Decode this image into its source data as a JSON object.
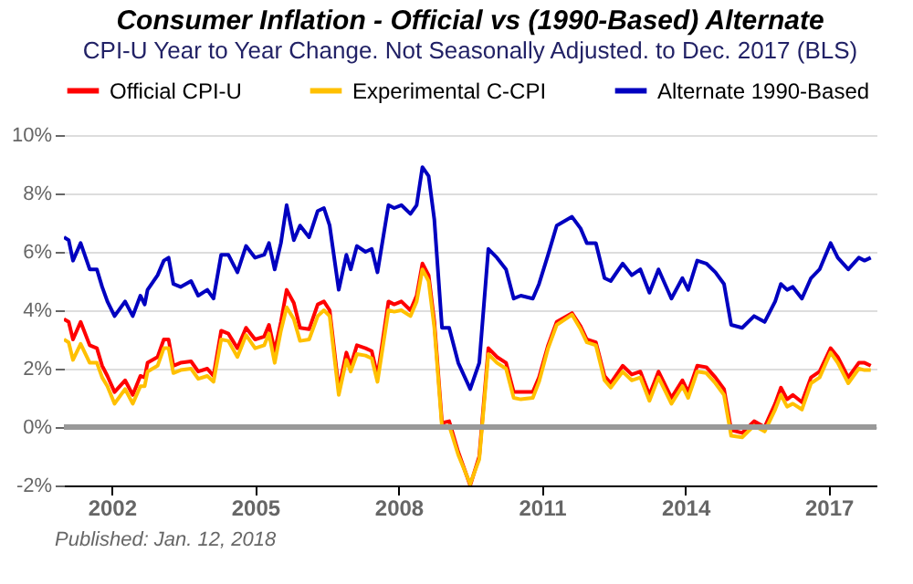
{
  "chart_data": {
    "type": "line",
    "title": "Consumer Inflation - Official vs (1990-Based) Alternate",
    "subtitle": "CPI-U Year to Year Change. Not Seasonally Adjusted. to Dec. 2017  (BLS)",
    "annotations": [
      "Published: Jan. 12, 2018"
    ],
    "xlim": [
      2001,
      2018
    ],
    "xticks": [
      2002,
      2005,
      2008,
      2011,
      2014,
      2017
    ],
    "ylim": [
      -2,
      10
    ],
    "yticks": [
      {
        "value": -2,
        "label": "-2%"
      },
      {
        "value": 0,
        "label": "0%"
      },
      {
        "value": 2,
        "label": "2%"
      },
      {
        "value": 4,
        "label": "4%"
      },
      {
        "value": 6,
        "label": "6%"
      },
      {
        "value": 8,
        "label": "8%"
      },
      {
        "value": 10,
        "label": "10%"
      }
    ],
    "grid": "y",
    "legend": "top",
    "marker": "none",
    "line_style": "solid",
    "ref_lines": [
      {
        "axis": "y",
        "value": 0,
        "color": "#999999"
      }
    ],
    "x": [
      2001.0,
      2001.1,
      2001.19,
      2001.35,
      2001.54,
      2001.69,
      2001.8,
      2001.91,
      2002.06,
      2002.28,
      2002.44,
      2002.6,
      2002.69,
      2002.75,
      2002.96,
      2003.09,
      2003.19,
      2003.29,
      2003.44,
      2003.66,
      2003.81,
      2004.0,
      2004.13,
      2004.29,
      2004.44,
      2004.63,
      2004.81,
      2005.0,
      2005.19,
      2005.29,
      2005.41,
      2005.54,
      2005.66,
      2005.81,
      2005.94,
      2006.13,
      2006.31,
      2006.44,
      2006.56,
      2006.75,
      2006.91,
      2007.0,
      2007.13,
      2007.31,
      2007.44,
      2007.56,
      2007.79,
      2007.91,
      2008.06,
      2008.25,
      2008.38,
      2008.5,
      2008.63,
      2008.75,
      2008.91,
      2009.06,
      2009.25,
      2009.5,
      2009.69,
      2009.88,
      2010.06,
      2010.25,
      2010.41,
      2010.56,
      2010.81,
      2010.94,
      2011.13,
      2011.31,
      2011.63,
      2011.81,
      2011.94,
      2012.13,
      2012.31,
      2012.44,
      2012.69,
      2012.88,
      2013.06,
      2013.25,
      2013.44,
      2013.71,
      2013.94,
      2014.06,
      2014.25,
      2014.44,
      2014.63,
      2014.81,
      2014.96,
      2015.19,
      2015.44,
      2015.66,
      2015.88,
      2016.0,
      2016.13,
      2016.25,
      2016.44,
      2016.63,
      2016.81,
      2017.04,
      2017.19,
      2017.41,
      2017.63,
      2017.75,
      2017.88
    ],
    "series": [
      {
        "name": "Official CPI-U",
        "color": "#ff0000",
        "values": [
          3.7,
          3.6,
          3.0,
          3.6,
          2.8,
          2.7,
          2.1,
          1.75,
          1.2,
          1.6,
          1.1,
          1.75,
          1.7,
          2.2,
          2.4,
          3.0,
          3.0,
          2.1,
          2.2,
          2.25,
          1.9,
          2.0,
          1.75,
          3.3,
          3.2,
          2.7,
          3.4,
          3.0,
          3.1,
          3.5,
          2.6,
          3.6,
          4.7,
          4.25,
          3.4,
          3.35,
          4.2,
          4.3,
          4.0,
          1.3,
          2.55,
          2.1,
          2.8,
          2.7,
          2.6,
          1.75,
          4.3,
          4.2,
          4.3,
          4.0,
          4.5,
          5.6,
          5.2,
          3.6,
          0.14,
          0.2,
          -0.85,
          -2.0,
          -1.0,
          2.7,
          2.4,
          2.2,
          1.2,
          1.2,
          1.2,
          1.7,
          2.8,
          3.6,
          3.9,
          3.45,
          3.0,
          2.9,
          1.75,
          1.5,
          2.1,
          1.8,
          1.9,
          1.1,
          1.9,
          1.0,
          1.6,
          1.2,
          2.1,
          2.05,
          1.7,
          1.3,
          -0.1,
          -0.2,
          0.2,
          0.0,
          0.8,
          1.35,
          0.95,
          1.1,
          0.85,
          1.7,
          1.9,
          2.7,
          2.4,
          1.7,
          2.2,
          2.2,
          2.1
        ]
      },
      {
        "name": "Experimental C-CPI",
        "color": "#ffc000",
        "values": [
          3.0,
          2.9,
          2.3,
          2.85,
          2.2,
          2.2,
          1.7,
          1.4,
          0.8,
          1.3,
          0.8,
          1.4,
          1.4,
          1.9,
          2.1,
          2.7,
          2.7,
          1.85,
          1.95,
          2.0,
          1.65,
          1.75,
          1.55,
          3.0,
          2.95,
          2.4,
          3.15,
          2.7,
          2.8,
          3.2,
          2.2,
          3.3,
          4.1,
          3.7,
          2.95,
          3.0,
          3.8,
          4.0,
          3.8,
          1.1,
          2.3,
          1.9,
          2.5,
          2.45,
          2.35,
          1.55,
          4.0,
          3.95,
          4.0,
          3.8,
          4.3,
          5.4,
          5.0,
          3.4,
          0.0,
          0.05,
          -0.95,
          -1.95,
          -1.1,
          2.5,
          2.2,
          2.0,
          1.0,
          0.95,
          1.0,
          1.55,
          2.7,
          3.5,
          3.85,
          3.35,
          2.9,
          2.8,
          1.6,
          1.35,
          1.9,
          1.6,
          1.7,
          0.9,
          1.7,
          0.8,
          1.4,
          1.0,
          1.9,
          1.85,
          1.5,
          1.1,
          -0.3,
          -0.35,
          0.05,
          -0.15,
          0.6,
          1.1,
          0.7,
          0.8,
          0.6,
          1.5,
          1.7,
          2.55,
          2.2,
          1.5,
          2.0,
          1.95,
          1.95
        ]
      },
      {
        "name": "Alternate 1990-Based",
        "color": "#0000c0",
        "values": [
          6.5,
          6.4,
          5.7,
          6.3,
          5.4,
          5.4,
          4.8,
          4.3,
          3.8,
          4.3,
          3.8,
          4.5,
          4.2,
          4.7,
          5.2,
          5.7,
          5.8,
          4.9,
          4.8,
          5.0,
          4.5,
          4.7,
          4.4,
          5.9,
          5.9,
          5.3,
          6.2,
          5.8,
          5.9,
          6.3,
          5.4,
          6.3,
          7.6,
          6.4,
          6.9,
          6.5,
          7.4,
          7.5,
          6.9,
          4.7,
          5.9,
          5.4,
          6.2,
          6.0,
          6.1,
          5.3,
          7.6,
          7.5,
          7.6,
          7.3,
          7.6,
          8.9,
          8.6,
          7.1,
          3.4,
          3.4,
          2.2,
          1.3,
          2.2,
          6.1,
          5.8,
          5.4,
          4.4,
          4.5,
          4.4,
          4.9,
          5.9,
          6.9,
          7.2,
          6.8,
          6.3,
          6.3,
          5.1,
          5.0,
          5.6,
          5.2,
          5.4,
          4.6,
          5.4,
          4.4,
          5.1,
          4.7,
          5.7,
          5.6,
          5.3,
          4.9,
          3.5,
          3.4,
          3.8,
          3.6,
          4.3,
          4.9,
          4.7,
          4.8,
          4.4,
          5.1,
          5.4,
          6.3,
          5.8,
          5.4,
          5.8,
          5.7,
          5.8
        ]
      }
    ]
  }
}
